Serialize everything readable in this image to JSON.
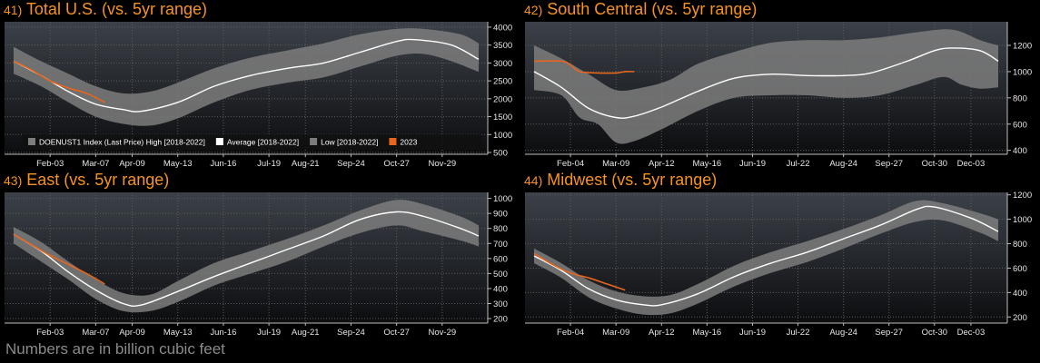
{
  "footnote": "Numbers are in billion cubic feet",
  "colors": {
    "band": "#7d7d7d",
    "average": "#ffffff",
    "current": "#e8651e",
    "title": "#f7931e",
    "grid": "#5a5a5a"
  },
  "legend": {
    "high": "DOENUST1 Index (Last Price) High [2018-2022]",
    "average": "Average [2018-2022]",
    "low": "Low [2018-2022]",
    "current": "2023"
  },
  "chart_data": [
    {
      "type": "area",
      "panel_number": "41)",
      "title": "Total U.S. (vs. 5yr range)",
      "xticks": [
        "Feb-03",
        "Mar-07",
        "Apr-09",
        "May-13",
        "Jun-16",
        "Jul-19",
        "Aug-21",
        "Sep-24",
        "Oct-27",
        "Nov-29"
      ],
      "xtick_weeks": [
        5,
        10,
        14,
        19,
        24,
        29,
        33,
        38,
        43,
        48
      ],
      "yticks": [
        500,
        1000,
        1500,
        2000,
        2500,
        3000,
        3500,
        4000
      ],
      "ylim": [
        450,
        4150
      ],
      "xlim": [
        0,
        53
      ],
      "high": [
        [
          1,
          3450
        ],
        [
          4,
          3050
        ],
        [
          7,
          2700
        ],
        [
          10,
          2350
        ],
        [
          13,
          2150
        ],
        [
          16,
          2200
        ],
        [
          19,
          2450
        ],
        [
          23,
          2850
        ],
        [
          27,
          3150
        ],
        [
          31,
          3350
        ],
        [
          35,
          3550
        ],
        [
          39,
          3800
        ],
        [
          43,
          3950
        ],
        [
          46,
          3950
        ],
        [
          50,
          3800
        ],
        [
          52,
          3550
        ]
      ],
      "low": [
        [
          1,
          2700
        ],
        [
          4,
          2350
        ],
        [
          7,
          1900
        ],
        [
          10,
          1500
        ],
        [
          13,
          1300
        ],
        [
          16,
          1250
        ],
        [
          19,
          1450
        ],
        [
          23,
          1900
        ],
        [
          27,
          2250
        ],
        [
          31,
          2450
        ],
        [
          35,
          2600
        ],
        [
          39,
          2900
        ],
        [
          43,
          3200
        ],
        [
          46,
          3250
        ],
        [
          49,
          3050
        ],
        [
          52,
          2750
        ]
      ],
      "average": [
        [
          1,
          3050
        ],
        [
          4,
          2650
        ],
        [
          7,
          2200
        ],
        [
          10,
          1850
        ],
        [
          13,
          1700
        ],
        [
          15,
          1650
        ],
        [
          19,
          1900
        ],
        [
          23,
          2350
        ],
        [
          27,
          2650
        ],
        [
          31,
          2850
        ],
        [
          35,
          3000
        ],
        [
          39,
          3300
        ],
        [
          43,
          3600
        ],
        [
          45,
          3650
        ],
        [
          49,
          3500
        ],
        [
          52,
          3100
        ]
      ],
      "current": [
        [
          1,
          3050
        ],
        [
          3,
          2800
        ],
        [
          5,
          2500
        ],
        [
          7,
          2300
        ],
        [
          9,
          2150
        ],
        [
          11,
          1900
        ]
      ],
      "show_legend": true
    },
    {
      "type": "area",
      "panel_number": "42)",
      "title": "South Central (vs. 5yr range)",
      "xticks": [
        "Feb-04",
        "Mar-09",
        "Apr-12",
        "May-16",
        "Jun-19",
        "Jul-22",
        "Aug-24",
        "Sep-27",
        "Oct-30",
        "Dec-03"
      ],
      "xtick_weeks": [
        5,
        10,
        15,
        20,
        25,
        30,
        35,
        40,
        45,
        49
      ],
      "yticks": [
        400,
        600,
        800,
        1000,
        1200
      ],
      "ylim": [
        370,
        1380
      ],
      "xlim": [
        0,
        53
      ],
      "high": [
        [
          1,
          1200
        ],
        [
          4,
          1100
        ],
        [
          7,
          980
        ],
        [
          10,
          860
        ],
        [
          13,
          880
        ],
        [
          16,
          940
        ],
        [
          19,
          1060
        ],
        [
          23,
          1150
        ],
        [
          27,
          1220
        ],
        [
          31,
          1240
        ],
        [
          35,
          1240
        ],
        [
          39,
          1260
        ],
        [
          43,
          1300
        ],
        [
          47,
          1320
        ],
        [
          50,
          1240
        ],
        [
          52,
          1200
        ]
      ],
      "low": [
        [
          1,
          860
        ],
        [
          4,
          820
        ],
        [
          6,
          650
        ],
        [
          8,
          600
        ],
        [
          10,
          460
        ],
        [
          12,
          470
        ],
        [
          15,
          560
        ],
        [
          19,
          700
        ],
        [
          23,
          800
        ],
        [
          27,
          820
        ],
        [
          31,
          820
        ],
        [
          35,
          800
        ],
        [
          39,
          820
        ],
        [
          43,
          900
        ],
        [
          46,
          960
        ],
        [
          48,
          900
        ],
        [
          50,
          870
        ],
        [
          52,
          880
        ]
      ],
      "average": [
        [
          1,
          1000
        ],
        [
          4,
          880
        ],
        [
          7,
          720
        ],
        [
          10,
          650
        ],
        [
          12,
          660
        ],
        [
          15,
          730
        ],
        [
          19,
          850
        ],
        [
          23,
          950
        ],
        [
          27,
          980
        ],
        [
          31,
          970
        ],
        [
          35,
          970
        ],
        [
          38,
          990
        ],
        [
          42,
          1080
        ],
        [
          45,
          1160
        ],
        [
          47,
          1180
        ],
        [
          50,
          1160
        ],
        [
          52,
          1080
        ]
      ],
      "current": [
        [
          1,
          1080
        ],
        [
          4,
          1080
        ],
        [
          5,
          1050
        ],
        [
          6,
          1000
        ],
        [
          8,
          990
        ],
        [
          10,
          990
        ],
        [
          11,
          1000
        ],
        [
          12,
          1000
        ]
      ],
      "show_legend": false
    },
    {
      "type": "area",
      "panel_number": "43)",
      "title": "East (vs. 5yr range)",
      "xticks": [
        "Feb-03",
        "Mar-07",
        "Apr-09",
        "May-13",
        "Jun-16",
        "Jul-19",
        "Aug-21",
        "Sep-24",
        "Oct-27",
        "Nov-29"
      ],
      "xtick_weeks": [
        5,
        10,
        14,
        19,
        24,
        29,
        33,
        38,
        43,
        48
      ],
      "yticks": [
        200,
        300,
        400,
        500,
        600,
        700,
        800,
        900,
        1000
      ],
      "ylim": [
        170,
        1040
      ],
      "xlim": [
        0,
        53
      ],
      "high": [
        [
          1,
          810
        ],
        [
          4,
          710
        ],
        [
          7,
          580
        ],
        [
          10,
          460
        ],
        [
          13,
          370
        ],
        [
          16,
          360
        ],
        [
          19,
          450
        ],
        [
          23,
          570
        ],
        [
          27,
          650
        ],
        [
          31,
          730
        ],
        [
          35,
          820
        ],
        [
          39,
          920
        ],
        [
          43,
          990
        ],
        [
          46,
          960
        ],
        [
          50,
          880
        ],
        [
          52,
          820
        ]
      ],
      "low": [
        [
          1,
          700
        ],
        [
          4,
          580
        ],
        [
          7,
          460
        ],
        [
          10,
          330
        ],
        [
          13,
          250
        ],
        [
          16,
          250
        ],
        [
          19,
          310
        ],
        [
          23,
          420
        ],
        [
          27,
          500
        ],
        [
          31,
          580
        ],
        [
          35,
          680
        ],
        [
          39,
          770
        ],
        [
          43,
          820
        ],
        [
          46,
          780
        ],
        [
          50,
          720
        ],
        [
          52,
          680
        ]
      ],
      "average": [
        [
          1,
          760
        ],
        [
          4,
          650
        ],
        [
          7,
          510
        ],
        [
          10,
          390
        ],
        [
          13,
          300
        ],
        [
          15,
          290
        ],
        [
          19,
          380
        ],
        [
          23,
          480
        ],
        [
          27,
          570
        ],
        [
          31,
          660
        ],
        [
          35,
          750
        ],
        [
          39,
          860
        ],
        [
          43,
          910
        ],
        [
          46,
          880
        ],
        [
          50,
          800
        ],
        [
          52,
          750
        ]
      ],
      "current": [
        [
          1,
          760
        ],
        [
          3,
          690
        ],
        [
          5,
          620
        ],
        [
          7,
          560
        ],
        [
          9,
          500
        ],
        [
          11,
          430
        ]
      ],
      "show_legend": false
    },
    {
      "type": "area",
      "panel_number": "44)",
      "title": "Midwest (vs. 5yr range)",
      "xticks": [
        "Feb-04",
        "Mar-09",
        "Apr-12",
        "May-16",
        "Jun-19",
        "Jul-22",
        "Aug-24",
        "Sep-27",
        "Oct-30",
        "Dec-03"
      ],
      "xtick_weeks": [
        5,
        10,
        15,
        20,
        25,
        30,
        35,
        40,
        45,
        49
      ],
      "yticks": [
        200,
        400,
        600,
        800,
        1000,
        1200
      ],
      "ylim": [
        150,
        1220
      ],
      "xlim": [
        0,
        53
      ],
      "high": [
        [
          1,
          760
        ],
        [
          4,
          640
        ],
        [
          7,
          500
        ],
        [
          10,
          410
        ],
        [
          13,
          370
        ],
        [
          16,
          380
        ],
        [
          19,
          470
        ],
        [
          23,
          620
        ],
        [
          27,
          730
        ],
        [
          31,
          820
        ],
        [
          35,
          920
        ],
        [
          39,
          1030
        ],
        [
          43,
          1150
        ],
        [
          46,
          1130
        ],
        [
          50,
          1050
        ],
        [
          52,
          1000
        ]
      ],
      "low": [
        [
          1,
          640
        ],
        [
          4,
          520
        ],
        [
          7,
          360
        ],
        [
          10,
          270
        ],
        [
          13,
          220
        ],
        [
          16,
          230
        ],
        [
          19,
          310
        ],
        [
          23,
          450
        ],
        [
          27,
          560
        ],
        [
          31,
          650
        ],
        [
          35,
          760
        ],
        [
          39,
          880
        ],
        [
          43,
          980
        ],
        [
          46,
          990
        ],
        [
          50,
          890
        ],
        [
          52,
          820
        ]
      ],
      "average": [
        [
          1,
          700
        ],
        [
          4,
          580
        ],
        [
          7,
          430
        ],
        [
          10,
          340
        ],
        [
          13,
          300
        ],
        [
          15,
          300
        ],
        [
          19,
          390
        ],
        [
          23,
          530
        ],
        [
          27,
          640
        ],
        [
          31,
          730
        ],
        [
          35,
          840
        ],
        [
          39,
          950
        ],
        [
          43,
          1080
        ],
        [
          45,
          1100
        ],
        [
          49,
          1010
        ],
        [
          52,
          900
        ]
      ],
      "current": [
        [
          1,
          720
        ],
        [
          3,
          630
        ],
        [
          5,
          560
        ],
        [
          7,
          520
        ],
        [
          9,
          470
        ],
        [
          11,
          420
        ]
      ],
      "show_legend": false
    }
  ]
}
